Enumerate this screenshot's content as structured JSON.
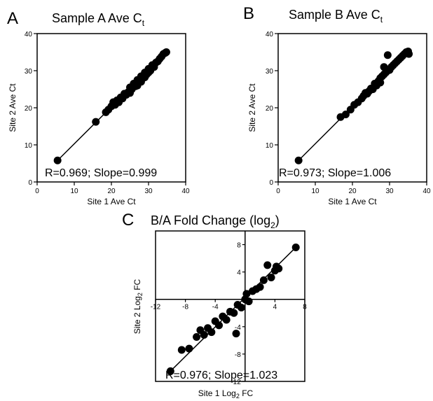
{
  "chart_data": [
    {
      "type": "scatter",
      "panel_label": "A",
      "title": "Sample A Ave C",
      "title_subscript": "t",
      "xlabel": "Site 1 Ave Ct",
      "ylabel": "Site 2 Ave Ct",
      "xlim": [
        0,
        40
      ],
      "ylim": [
        0,
        40
      ],
      "xticks": [
        0,
        10,
        20,
        30,
        40
      ],
      "yticks": [
        0,
        10,
        20,
        30,
        40
      ],
      "annotation": "R=0.969; Slope=0.999",
      "fit_line": {
        "from": [
          5.5,
          5.8
        ],
        "to": [
          34.8,
          35.0
        ]
      },
      "points": [
        [
          5.5,
          5.8
        ],
        [
          15.8,
          16.2
        ],
        [
          18.5,
          18.8
        ],
        [
          19.2,
          19.5
        ],
        [
          20,
          20.4
        ],
        [
          20.5,
          21.5
        ],
        [
          21,
          20.8
        ],
        [
          21.5,
          22
        ],
        [
          22,
          21.5
        ],
        [
          22.5,
          22.8
        ],
        [
          23,
          22.5
        ],
        [
          23.5,
          23.8
        ],
        [
          24,
          23.5
        ],
        [
          24.5,
          24.2
        ],
        [
          25,
          25.5
        ],
        [
          25,
          24
        ],
        [
          25.5,
          25
        ],
        [
          26,
          26.5
        ],
        [
          26.5,
          25.8
        ],
        [
          27,
          27.5
        ],
        [
          27,
          26
        ],
        [
          27.5,
          27
        ],
        [
          28,
          28.5
        ],
        [
          28,
          27
        ],
        [
          28.5,
          28
        ],
        [
          29,
          29.5
        ],
        [
          29,
          28.2
        ],
        [
          29.5,
          29
        ],
        [
          30,
          30.5
        ],
        [
          30,
          29.5
        ],
        [
          30.5,
          30
        ],
        [
          31,
          31.5
        ],
        [
          31.5,
          31
        ],
        [
          32,
          32.2
        ],
        [
          32.5,
          32.5
        ],
        [
          33,
          33.2
        ],
        [
          33.5,
          33.8
        ],
        [
          34,
          34.5
        ],
        [
          34.5,
          34.8
        ],
        [
          34.8,
          35
        ]
      ]
    },
    {
      "type": "scatter",
      "panel_label": "B",
      "title": "Sample B Ave C",
      "title_subscript": "t",
      "xlabel": "Site 1 Ave Ct",
      "ylabel": "Site 2 Ave Ct",
      "xlim": [
        0,
        40
      ],
      "ylim": [
        0,
        40
      ],
      "xticks": [
        0,
        10,
        20,
        30,
        40
      ],
      "yticks": [
        0,
        10,
        20,
        30,
        40
      ],
      "annotation": "R=0.973; Slope=1.006",
      "fit_line": {
        "from": [
          5.5,
          5.8
        ],
        "to": [
          35.2,
          35.5
        ]
      },
      "points": [
        [
          5.5,
          5.8
        ],
        [
          16.8,
          17.5
        ],
        [
          18.2,
          18.2
        ],
        [
          19.5,
          19.5
        ],
        [
          20.5,
          20.8
        ],
        [
          21.5,
          21.5
        ],
        [
          22.5,
          22.5
        ],
        [
          23,
          23.2
        ],
        [
          23.5,
          24
        ],
        [
          24,
          23.8
        ],
        [
          24.5,
          24.5
        ],
        [
          25,
          25.2
        ],
        [
          25.5,
          25
        ],
        [
          26,
          26.5
        ],
        [
          26.5,
          26
        ],
        [
          27,
          27.2
        ],
        [
          27.5,
          28
        ],
        [
          27.5,
          26.8
        ],
        [
          28,
          28.5
        ],
        [
          28.5,
          29
        ],
        [
          28.5,
          31
        ],
        [
          29,
          29.5
        ],
        [
          29.5,
          30
        ],
        [
          29.5,
          34.2
        ],
        [
          30,
          30.2
        ],
        [
          30.5,
          31
        ],
        [
          31,
          31.5
        ],
        [
          31.5,
          32
        ],
        [
          32,
          32.5
        ],
        [
          32.5,
          33
        ],
        [
          33,
          33.5
        ],
        [
          33.5,
          34
        ],
        [
          34,
          34.5
        ],
        [
          34.5,
          35
        ],
        [
          35,
          35.2
        ],
        [
          35.2,
          34.5
        ]
      ]
    },
    {
      "type": "scatter",
      "panel_label": "C",
      "title": "B/A Fold Change (log",
      "title_subscript": "2",
      "title_suffix": ")",
      "xlabel": "Site 1 Log",
      "xlabel_subscript": "2",
      "xlabel_suffix": " FC",
      "ylabel": "Site 2 Log",
      "ylabel_subscript": "2",
      "ylabel_suffix": " FC",
      "xlim": [
        -12,
        8
      ],
      "ylim": [
        -12,
        10
      ],
      "xticks": [
        -12,
        -8,
        -4,
        4,
        8
      ],
      "yticks": [
        -12,
        -8,
        -4,
        4,
        8
      ],
      "annotation": "R=0.976; Slope=1.023",
      "fit_line": {
        "from": [
          -10,
          -10.5
        ],
        "to": [
          6.8,
          7.6
        ]
      },
      "points": [
        [
          -10,
          -10.5
        ],
        [
          -8.5,
          -7.4
        ],
        [
          -7.5,
          -7.2
        ],
        [
          -6.5,
          -5.5
        ],
        [
          -6,
          -4.5
        ],
        [
          -5.5,
          -5.2
        ],
        [
          -5,
          -4.2
        ],
        [
          -4.5,
          -4.8
        ],
        [
          -4,
          -3.2
        ],
        [
          -3.5,
          -3.8
        ],
        [
          -3,
          -2.5
        ],
        [
          -2.5,
          -3
        ],
        [
          -2,
          -1.8
        ],
        [
          -1.5,
          -2
        ],
        [
          -1,
          -0.8
        ],
        [
          -0.5,
          -1.2
        ],
        [
          0,
          0
        ],
        [
          0.2,
          0.8
        ],
        [
          0.5,
          -0.3
        ],
        [
          1,
          1.2
        ],
        [
          -1.2,
          -5
        ],
        [
          1.5,
          1.5
        ],
        [
          2,
          1.8
        ],
        [
          2.5,
          2.8
        ],
        [
          3,
          5
        ],
        [
          3.5,
          3.2
        ],
        [
          4,
          4.2
        ],
        [
          4.2,
          4.8
        ],
        [
          4.5,
          4.5
        ],
        [
          6.8,
          7.6
        ]
      ]
    }
  ]
}
